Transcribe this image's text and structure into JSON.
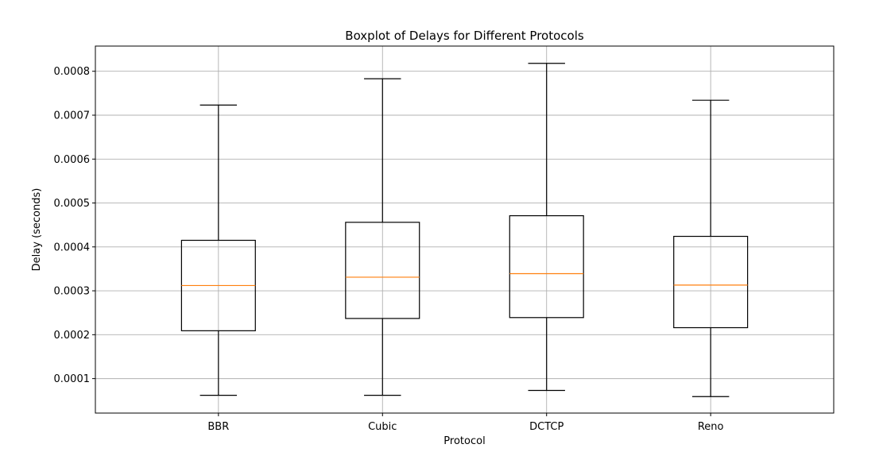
{
  "chart_data": {
    "type": "boxplot",
    "title": "Boxplot of Delays for Different Protocols",
    "xlabel": "Protocol",
    "ylabel": "Delay (seconds)",
    "categories": [
      "BBR",
      "Cubic",
      "DCTCP",
      "Reno"
    ],
    "boxes": [
      {
        "name": "BBR",
        "whisker_low": 6.2e-05,
        "q1": 0.000209,
        "median": 0.000312,
        "q3": 0.000415,
        "whisker_high": 0.000723
      },
      {
        "name": "Cubic",
        "whisker_low": 6.2e-05,
        "q1": 0.000237,
        "median": 0.000331,
        "q3": 0.000456,
        "whisker_high": 0.000783
      },
      {
        "name": "DCTCP",
        "whisker_low": 7.3e-05,
        "q1": 0.000239,
        "median": 0.000339,
        "q3": 0.000471,
        "whisker_high": 0.000818
      },
      {
        "name": "Reno",
        "whisker_low": 5.9e-05,
        "q1": 0.000216,
        "median": 0.000313,
        "q3": 0.000424,
        "whisker_high": 0.000734
      }
    ],
    "yticks": [
      0.0001,
      0.0002,
      0.0003,
      0.0004,
      0.0005,
      0.0006,
      0.0007,
      0.0008
    ],
    "ytick_labels": [
      "0.0001",
      "0.0002",
      "0.0003",
      "0.0004",
      "0.0005",
      "0.0006",
      "0.0007",
      "0.0008"
    ],
    "ylim": [
      2.15e-05,
      0.0008574
    ],
    "grid": true,
    "colors": {
      "box": "#000000",
      "median": "#ff7f0e",
      "grid": "#b0b0b0"
    }
  }
}
